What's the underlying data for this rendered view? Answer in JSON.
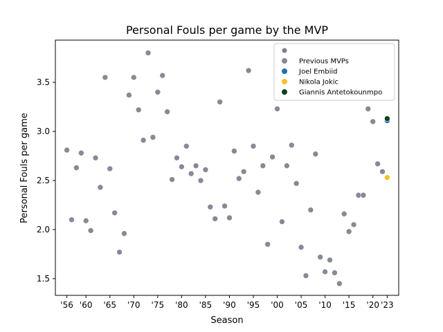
{
  "chart_data": {
    "type": "scatter",
    "title": "Personal Fouls per game by the MVP",
    "xlabel": "Season",
    "ylabel": "Personal Fouls per game",
    "xlim": [
      1953.6,
      2025.4
    ],
    "ylim": [
      1.33,
      3.93
    ],
    "grid": false,
    "legend_position": "top-right",
    "x_ticks": [
      {
        "value": 1956,
        "label": "'56"
      },
      {
        "value": 1960,
        "label": "'60"
      },
      {
        "value": 1965,
        "label": "'65"
      },
      {
        "value": 1970,
        "label": "'70"
      },
      {
        "value": 1975,
        "label": "'75"
      },
      {
        "value": 1980,
        "label": "'80"
      },
      {
        "value": 1985,
        "label": "'85"
      },
      {
        "value": 1990,
        "label": "'90"
      },
      {
        "value": 1995,
        "label": "'95"
      },
      {
        "value": 2000,
        "label": "'00"
      },
      {
        "value": 2005,
        "label": "'05"
      },
      {
        "value": 2010,
        "label": "'10"
      },
      {
        "value": 2015,
        "label": "'15"
      },
      {
        "value": 2020,
        "label": "'20"
      },
      {
        "value": 2023,
        "label": "'23"
      }
    ],
    "y_ticks": [
      {
        "value": 1.5,
        "label": "1.5"
      },
      {
        "value": 2.0,
        "label": "2.0"
      },
      {
        "value": 2.5,
        "label": "2.5"
      },
      {
        "value": 3.0,
        "label": "3.0"
      },
      {
        "value": 3.5,
        "label": "3.5"
      }
    ],
    "legend_header_color": "#7f7f8a",
    "series": [
      {
        "name": "Previous MVPs",
        "color": "#868a96",
        "points": [
          [
            1956,
            2.81
          ],
          [
            1957,
            2.1
          ],
          [
            1958,
            2.63
          ],
          [
            1959,
            2.78
          ],
          [
            1960,
            2.09
          ],
          [
            1961,
            1.99
          ],
          [
            1962,
            2.73
          ],
          [
            1963,
            2.43
          ],
          [
            1964,
            3.55
          ],
          [
            1965,
            2.62
          ],
          [
            1966,
            2.17
          ],
          [
            1967,
            1.77
          ],
          [
            1968,
            1.96
          ],
          [
            1969,
            3.37
          ],
          [
            1970,
            3.55
          ],
          [
            1971,
            3.22
          ],
          [
            1972,
            2.91
          ],
          [
            1973,
            3.8
          ],
          [
            1974,
            2.94
          ],
          [
            1975,
            3.4
          ],
          [
            1976,
            3.57
          ],
          [
            1977,
            3.2
          ],
          [
            1978,
            2.51
          ],
          [
            1979,
            2.73
          ],
          [
            1980,
            2.64
          ],
          [
            1981,
            2.85
          ],
          [
            1982,
            2.57
          ],
          [
            1983,
            2.65
          ],
          [
            1984,
            2.5
          ],
          [
            1985,
            2.61
          ],
          [
            1986,
            2.23
          ],
          [
            1987,
            2.11
          ],
          [
            1988,
            3.3
          ],
          [
            1989,
            2.24
          ],
          [
            1990,
            2.12
          ],
          [
            1991,
            2.8
          ],
          [
            1992,
            2.52
          ],
          [
            1993,
            2.59
          ],
          [
            1994,
            3.62
          ],
          [
            1995,
            2.85
          ],
          [
            1996,
            2.38
          ],
          [
            1997,
            2.65
          ],
          [
            1998,
            1.85
          ],
          [
            1999,
            2.74
          ],
          [
            2000,
            3.23
          ],
          [
            2001,
            2.08
          ],
          [
            2002,
            2.65
          ],
          [
            2003,
            2.86
          ],
          [
            2004,
            2.47
          ],
          [
            2005,
            1.82
          ],
          [
            2006,
            1.53
          ],
          [
            2007,
            2.2
          ],
          [
            2008,
            2.77
          ],
          [
            2009,
            1.72
          ],
          [
            2010,
            1.57
          ],
          [
            2011,
            1.69
          ],
          [
            2012,
            1.56
          ],
          [
            2013,
            1.45
          ],
          [
            2014,
            2.16
          ],
          [
            2015,
            1.98
          ],
          [
            2016,
            2.05
          ],
          [
            2017,
            2.35
          ],
          [
            2018,
            2.35
          ],
          [
            2019,
            3.23
          ],
          [
            2020,
            3.1
          ],
          [
            2021,
            2.67
          ],
          [
            2022,
            2.59
          ]
        ]
      },
      {
        "name": "Joel Embiid",
        "color": "#1f6fb5",
        "points": [
          [
            2023,
            3.11
          ]
        ]
      },
      {
        "name": "Nikola Jokic",
        "color": "#f5c12e",
        "points": [
          [
            2023,
            2.53
          ]
        ]
      },
      {
        "name": "Giannis Antetokounmpo",
        "color": "#0b4420",
        "points": [
          [
            2023,
            3.13
          ]
        ]
      }
    ]
  }
}
